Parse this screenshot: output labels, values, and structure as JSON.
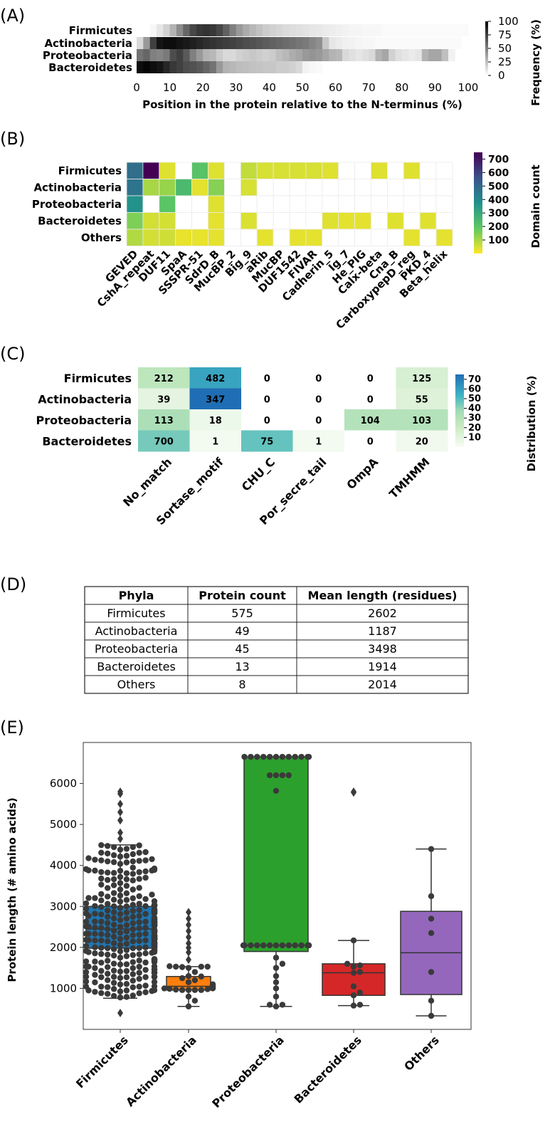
{
  "panel_labels": {
    "a": "(A)",
    "b": "(B)",
    "c": "(C)",
    "d": "(D)",
    "e": "(E)"
  },
  "chart_data": [
    {
      "panel": "(A)",
      "type": "heatmap",
      "xlabel": "Position in the protein relative to the N-terminus (%)",
      "xticks": [
        "0",
        "10",
        "20",
        "30",
        "40",
        "50",
        "60",
        "70",
        "80",
        "90",
        "100"
      ],
      "xlim": [
        0,
        100
      ],
      "rows": [
        "Firmicutes",
        "Actinobacteria",
        "Proteobacteria",
        "Bacteroidetes"
      ],
      "colorbar": {
        "label": "Frequency (%)",
        "ticks": [
          "100",
          "75",
          "50",
          "25",
          "0"
        ],
        "range": [
          0,
          100
        ],
        "colors": [
          "#ffffff",
          "#000000"
        ]
      },
      "bin_width": 2,
      "values": [
        [
          0,
          0,
          3,
          10,
          18,
          30,
          45,
          60,
          72,
          78,
          80,
          78,
          72,
          62,
          50,
          40,
          33,
          28,
          24,
          20,
          18,
          16,
          14,
          13,
          12,
          11,
          10,
          9,
          8,
          7,
          6,
          5,
          4,
          4,
          3,
          3,
          3,
          2,
          2,
          2,
          2,
          2,
          2,
          2,
          2,
          2,
          2,
          2,
          2,
          2
        ],
        [
          15,
          40,
          75,
          92,
          95,
          95,
          92,
          90,
          88,
          85,
          82,
          80,
          78,
          76,
          74,
          72,
          70,
          68,
          66,
          64,
          62,
          60,
          58,
          56,
          54,
          52,
          48,
          44,
          22,
          10,
          8,
          6,
          5,
          4,
          3,
          3,
          2,
          2,
          2,
          2,
          2,
          2,
          2,
          2,
          2,
          2,
          2,
          2,
          2,
          0
        ],
        [
          55,
          60,
          50,
          48,
          52,
          70,
          75,
          65,
          50,
          40,
          30,
          28,
          20,
          15,
          15,
          18,
          20,
          22,
          20,
          18,
          20,
          25,
          28,
          32,
          35,
          40,
          42,
          40,
          35,
          30,
          28,
          15,
          12,
          10,
          12,
          15,
          30,
          35,
          18,
          12,
          10,
          8,
          10,
          30,
          35,
          35,
          25,
          5,
          0,
          0
        ],
        [
          95,
          98,
          95,
          92,
          85,
          78,
          75,
          70,
          68,
          65,
          60,
          55,
          40,
          30,
          28,
          26,
          25,
          24,
          23,
          22,
          22,
          20,
          20,
          18,
          15,
          5,
          3,
          2,
          0,
          0,
          0,
          0,
          0,
          0,
          0,
          0,
          0,
          0,
          0,
          0,
          0,
          0,
          0,
          0,
          0,
          0,
          0,
          0,
          0,
          0
        ]
      ]
    },
    {
      "panel": "(B)",
      "type": "heatmap",
      "rows": [
        "Firmicutes",
        "Actinobacteria",
        "Proteobacteria",
        "Bacteroidetes",
        "Others"
      ],
      "columns": [
        "GEVED",
        "CshA_repeat",
        "DUF11",
        "SpaA",
        "SSSPR-51",
        "SdrD_B",
        "MucBP_2",
        "Big_9",
        "aRib",
        "MucBP",
        "DUF1542",
        "FIVAR",
        "Cadherin_5",
        "Ig_7",
        "He_PIG",
        "Calx-beta",
        "Cna_B",
        "CarboxypepD_reg",
        "PKD_4",
        "Beta_helix"
      ],
      "colorbar": {
        "label": "Domain count",
        "ticks": [
          "700",
          "600",
          "500",
          "400",
          "300",
          "200",
          "100"
        ],
        "range": [
          0,
          750
        ]
      },
      "values": [
        [
          480,
          750,
          35,
          null,
          210,
          35,
          null,
          70,
          45,
          45,
          45,
          45,
          35,
          null,
          null,
          35,
          null,
          35,
          null,
          null
        ],
        [
          460,
          100,
          120,
          240,
          30,
          140,
          null,
          45,
          null,
          null,
          null,
          null,
          null,
          null,
          null,
          null,
          null,
          null,
          null,
          null
        ],
        [
          370,
          null,
          200,
          null,
          null,
          35,
          null,
          null,
          null,
          null,
          null,
          null,
          null,
          null,
          null,
          null,
          null,
          null,
          null,
          null
        ],
        [
          150,
          50,
          50,
          null,
          null,
          30,
          null,
          40,
          null,
          null,
          null,
          null,
          35,
          30,
          30,
          null,
          35,
          null,
          35,
          null
        ],
        [
          90,
          50,
          55,
          25,
          25,
          30,
          null,
          null,
          30,
          null,
          30,
          30,
          null,
          null,
          null,
          null,
          null,
          30,
          null,
          30
        ]
      ]
    },
    {
      "panel": "(C)",
      "type": "heatmap",
      "rows": [
        "Firmicutes",
        "Actinobacteria",
        "Proteobacteria",
        "Bacteroidetes"
      ],
      "columns": [
        "No_match",
        "Sortase_motif",
        "CHU_C",
        "Por_secre_tail",
        "OmpA",
        "TMHMM"
      ],
      "colorbar": {
        "label": "Distribution (%)",
        "ticks": [
          "70",
          "60",
          "50",
          "40",
          "30",
          "20",
          "10"
        ],
        "range": [
          0,
          75
        ]
      },
      "cell_labels": [
        [
          "212",
          "482",
          "0",
          "0",
          "0",
          "125"
        ],
        [
          "39",
          "347",
          "0",
          "0",
          "0",
          "55"
        ],
        [
          "113",
          "18",
          "0",
          "0",
          "104",
          "103"
        ],
        [
          "700",
          "1",
          "75",
          "1",
          "0",
          "20"
        ]
      ],
      "values": [
        [
          26,
          58,
          0,
          0,
          0,
          15
        ],
        [
          9,
          79,
          0,
          0,
          0,
          12
        ],
        [
          33,
          5,
          0,
          0,
          30,
          30
        ],
        [
          44,
          2,
          47,
          2,
          0,
          3
        ]
      ]
    },
    {
      "panel": "(D)",
      "type": "table",
      "headers": [
        "Phyla",
        "Protein count",
        "Mean length (residues)"
      ],
      "rows": [
        [
          "Firmicutes",
          "575",
          "2602"
        ],
        [
          "Actinobacteria",
          "49",
          "1187"
        ],
        [
          "Proteobacteria",
          "45",
          "3498"
        ],
        [
          "Bacteroidetes",
          "13",
          "1914"
        ],
        [
          "Others",
          "8",
          "2014"
        ]
      ]
    },
    {
      "panel": "(E)",
      "type": "box",
      "ylabel": "Protein length (# amino acids)",
      "ylim": [
        0,
        7000
      ],
      "yticks": [
        "1000",
        "2000",
        "3000",
        "4000",
        "5000",
        "6000"
      ],
      "categories": [
        "Firmicutes",
        "Actinobacteria",
        "Proteobacteria",
        "Bacteroidetes",
        "Others"
      ],
      "colors": [
        "#1f77b4",
        "#ff7f0e",
        "#2ca02c",
        "#d62728",
        "#9467bd"
      ],
      "boxes": [
        {
          "q1": 1980,
          "median": 2450,
          "q3": 3000,
          "whisker_low": 760,
          "whisker_high": 4500,
          "fliers": [
            400,
            4650,
            4800,
            5100,
            5300,
            5500,
            5750,
            5800
          ]
        },
        {
          "q1": 960,
          "median": 1050,
          "q3": 1290,
          "whisker_low": 560,
          "whisker_high": 1530,
          "fliers": [
            1700,
            1880,
            1990,
            2100,
            2250,
            2400,
            2550,
            2700,
            2860
          ]
        },
        {
          "q1": 1900,
          "median": 2050,
          "q3": 6650,
          "whisker_low": 560,
          "whisker_high": 6650,
          "fliers": []
        },
        {
          "q1": 830,
          "median": 1380,
          "q3": 1600,
          "whisker_low": 580,
          "whisker_high": 2170,
          "fliers": [
            5780,
            5800
          ]
        },
        {
          "q1": 850,
          "median": 1870,
          "q3": 2880,
          "whisker_low": 330,
          "whisker_high": 4400,
          "fliers": []
        }
      ],
      "points": [
        [],
        [
          960,
          960,
          960,
          960,
          970,
          980,
          990,
          1000,
          1000,
          1010,
          1020,
          1030,
          1050,
          1060,
          1080,
          1100,
          1150,
          1200,
          1250,
          1290,
          1300,
          1400,
          1500,
          1520,
          1530,
          1530,
          1530,
          1540,
          800,
          700,
          560
        ],
        [
          6650,
          6650,
          6650,
          6650,
          6650,
          6650,
          6650,
          6650,
          6650,
          6650,
          6650,
          6650,
          6200,
          6200,
          6200,
          6200,
          5820,
          2050,
          2050,
          2050,
          2050,
          2050,
          2050,
          2050,
          2050,
          2050,
          2050,
          2050,
          2050,
          2050,
          2050,
          1750,
          1600,
          1500,
          1300,
          1150,
          1000,
          800,
          600,
          600,
          560
        ],
        [
          2170,
          1600,
          1560,
          1530,
          1400,
          1380,
          1050,
          900,
          830,
          600,
          580
        ],
        [
          4400,
          3250,
          2700,
          2350,
          1400,
          700,
          330
        ]
      ]
    }
  ]
}
